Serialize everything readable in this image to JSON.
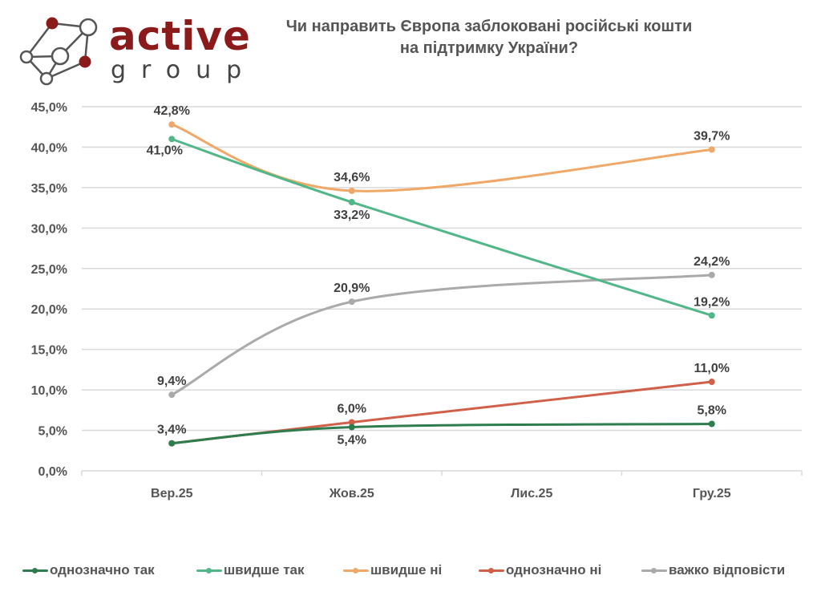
{
  "logo": {
    "word1": "active",
    "word2": "group",
    "colors": {
      "accent": "#8b1a1a",
      "node": "#555555"
    }
  },
  "header": {
    "title_line1": "Чи направить Європа заблоковані російські кошти",
    "title_line2": "на підтримку України?"
  },
  "chart_data": {
    "type": "line",
    "title": "Чи направить Європа заблоковані російські кошти на підтримку України?",
    "xlabel": "",
    "ylabel": "",
    "categories": [
      "Вер.25",
      "Жов.25",
      "Лис.25",
      "Гру.25"
    ],
    "ylim": [
      0,
      45
    ],
    "yticks": [
      0,
      5,
      10,
      15,
      20,
      25,
      30,
      35,
      40,
      45
    ],
    "ytick_labels": [
      "0,0%",
      "5,0%",
      "10,0%",
      "15,0%",
      "20,0%",
      "25,0%",
      "30,0%",
      "35,0%",
      "40,0%",
      "45,0%"
    ],
    "grid": true,
    "legend_position": "bottom",
    "smooth": true,
    "series": [
      {
        "name": "однозначно так",
        "color": "#2e7d4f",
        "values": [
          3.4,
          5.4,
          null,
          5.8
        ],
        "labels": [
          "",
          "5,4%",
          "",
          "5,8%"
        ],
        "label_pos": [
          "above",
          "below",
          "",
          "above"
        ]
      },
      {
        "name": "швидше так",
        "color": "#52b788",
        "values": [
          41.0,
          33.2,
          null,
          19.2
        ],
        "labels": [
          "41,0%",
          "33,2%",
          "",
          "19,2%"
        ],
        "label_pos": [
          "below",
          "below",
          "",
          "above"
        ]
      },
      {
        "name": "швидше ні",
        "color": "#f0a868",
        "values": [
          42.8,
          34.6,
          null,
          39.7
        ],
        "labels": [
          "42,8%",
          "34,6%",
          "",
          "39,7%"
        ],
        "label_pos": [
          "above",
          "above",
          "",
          "above"
        ]
      },
      {
        "name": "однозначно ні",
        "color": "#d0604a",
        "values": [
          3.4,
          6.0,
          null,
          11.0
        ],
        "labels": [
          "3,4%",
          "6,0%",
          "",
          "11,0%"
        ],
        "label_pos": [
          "above",
          "above",
          "",
          "above"
        ]
      },
      {
        "name": "важко відповісти",
        "color": "#aaaaaa",
        "values": [
          9.4,
          20.9,
          null,
          24.2
        ],
        "labels": [
          "9,4%",
          "20,9%",
          "",
          "24,2%"
        ],
        "label_pos": [
          "above",
          "above",
          "",
          "above"
        ]
      }
    ]
  }
}
